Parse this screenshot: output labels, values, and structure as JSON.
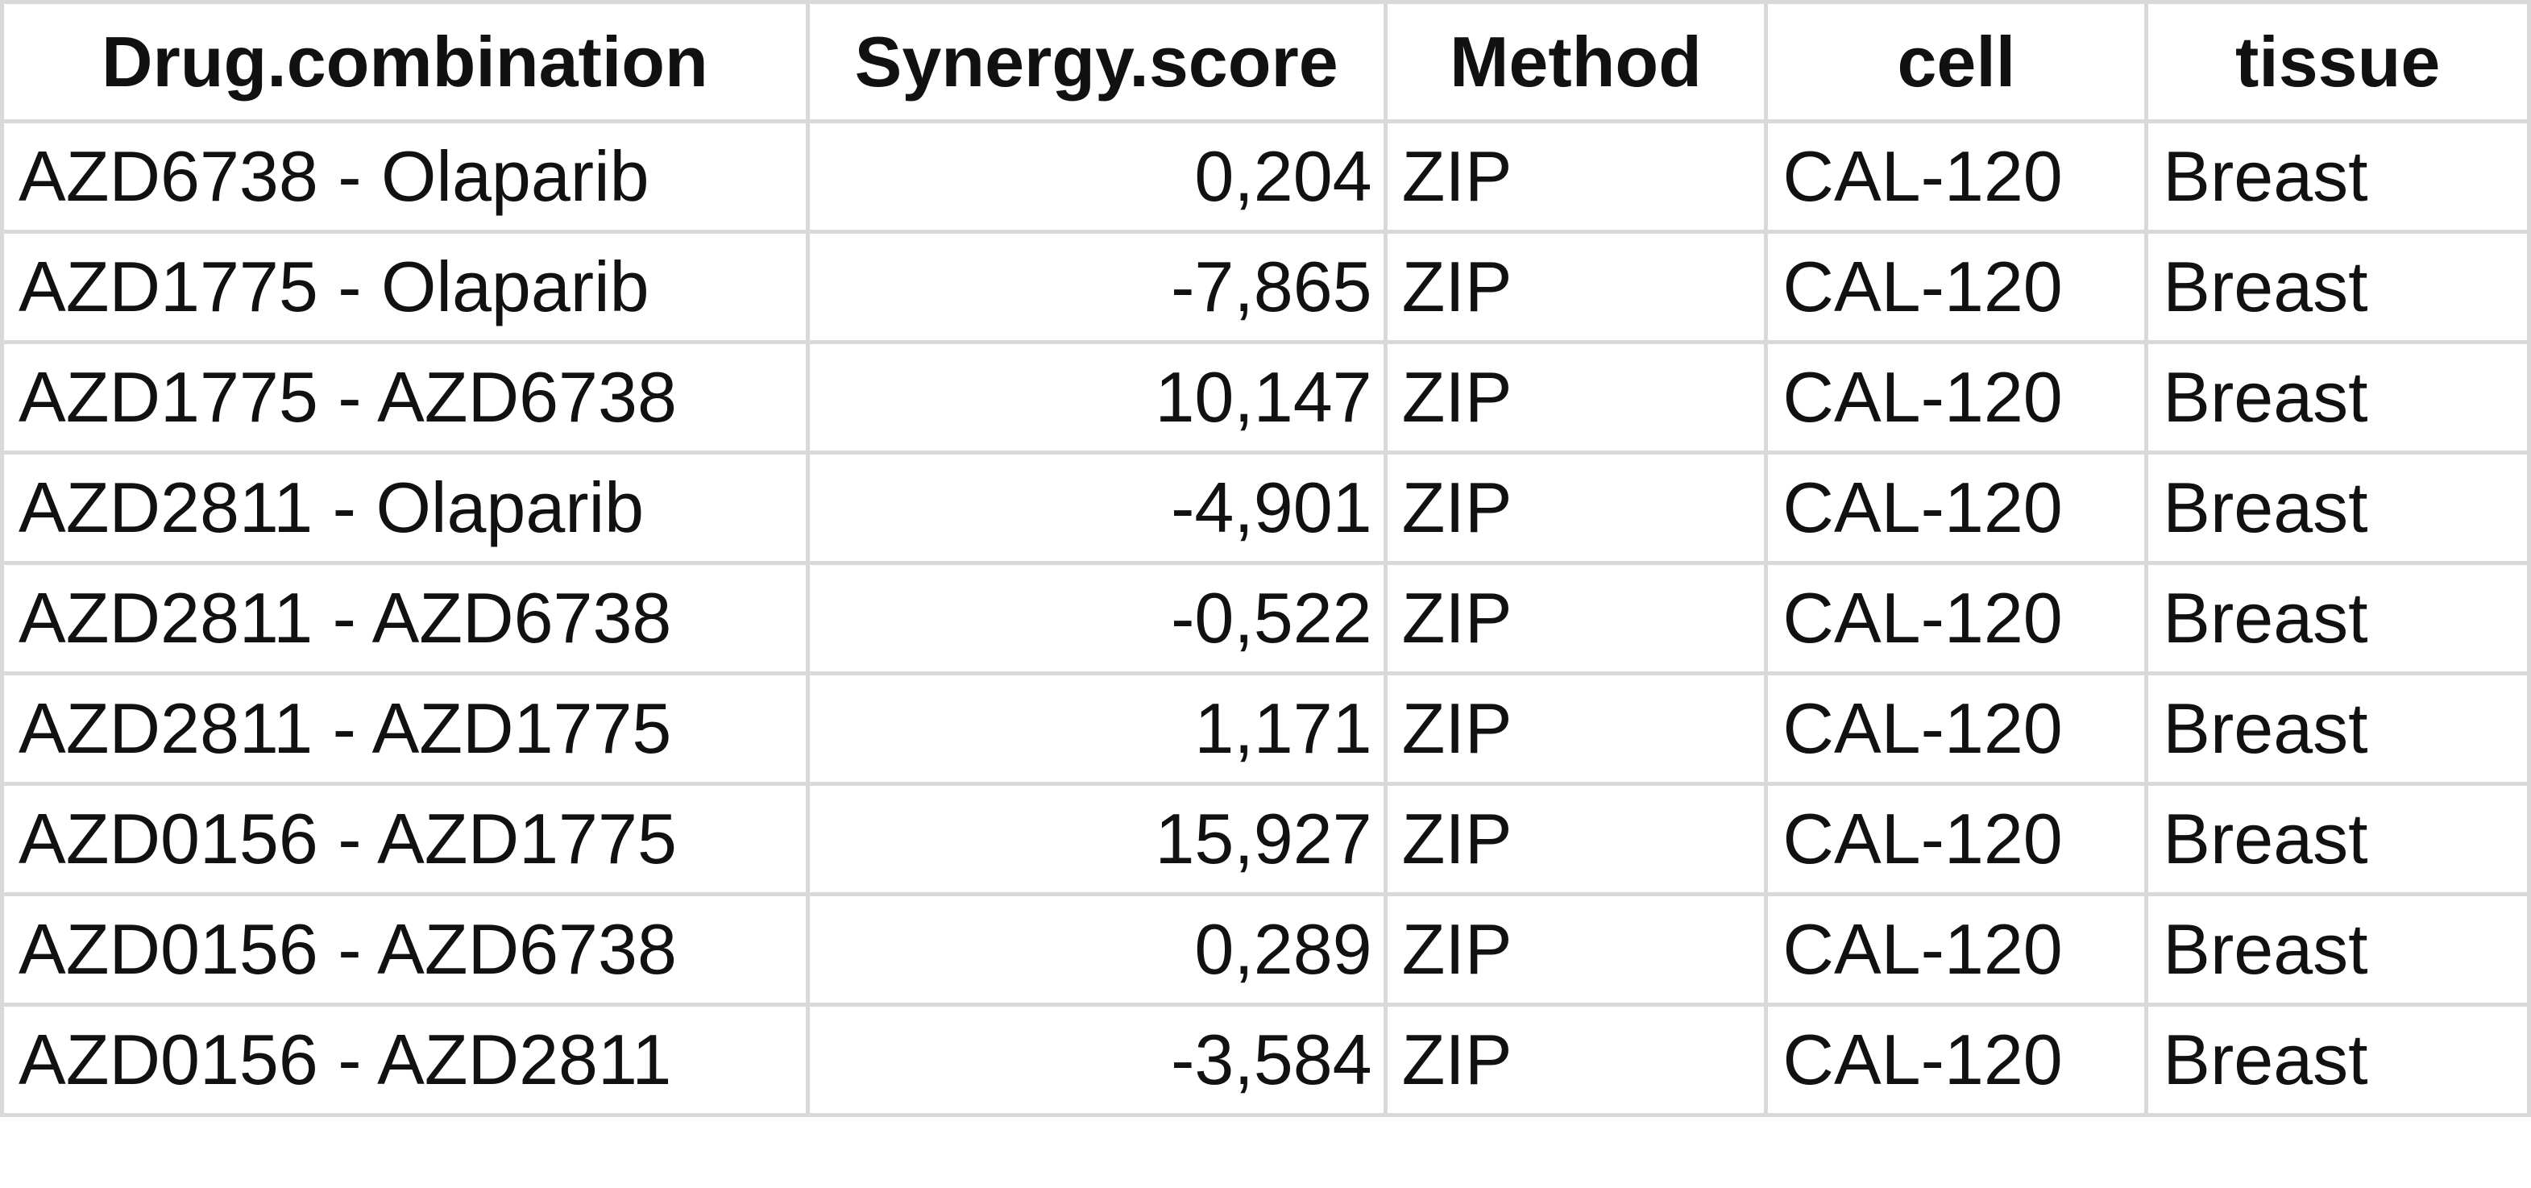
{
  "table": {
    "headers": [
      "Drug.combination",
      "Synergy.score",
      "Method",
      "cell",
      "tissue"
    ],
    "rows": [
      [
        "AZD6738 - Olaparib",
        "0,204",
        "ZIP",
        "CAL-120",
        "Breast"
      ],
      [
        "AZD1775 - Olaparib",
        "-7,865",
        "ZIP",
        "CAL-120",
        "Breast"
      ],
      [
        "AZD1775 - AZD6738",
        "10,147",
        "ZIP",
        "CAL-120",
        "Breast"
      ],
      [
        "AZD2811 - Olaparib",
        "-4,901",
        "ZIP",
        "CAL-120",
        "Breast"
      ],
      [
        "AZD2811 - AZD6738",
        "-0,522",
        "ZIP",
        "CAL-120",
        "Breast"
      ],
      [
        "AZD2811 - AZD1775",
        "1,171",
        "ZIP",
        "CAL-120",
        "Breast"
      ],
      [
        "AZD0156 - AZD1775",
        "15,927",
        "ZIP",
        "CAL-120",
        "Breast"
      ],
      [
        "AZD0156 - AZD6738",
        "0,289",
        "ZIP",
        "CAL-120",
        "Breast"
      ],
      [
        "AZD0156 - AZD2811",
        "-3,584",
        "ZIP",
        "CAL-120",
        "Breast"
      ]
    ]
  }
}
